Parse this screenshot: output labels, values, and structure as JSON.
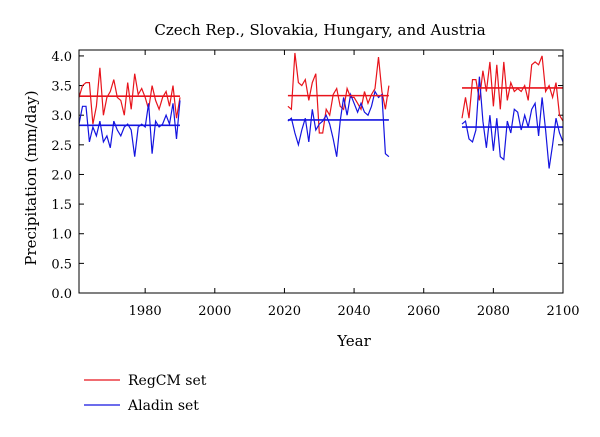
{
  "chart_data": {
    "type": "line",
    "title": "Czech Rep., Slovakia, Hungary, and Austria",
    "xlabel": "Year",
    "ylabel": "Precipitation (mm/day)",
    "xlim": [
      1961,
      2100
    ],
    "ylim": [
      0,
      4.1
    ],
    "xticks": [
      1980,
      2000,
      2020,
      2040,
      2060,
      2080,
      2100
    ],
    "yticks": [
      0.0,
      0.5,
      1.0,
      1.5,
      2.0,
      2.5,
      3.0,
      3.5,
      4.0
    ],
    "xtick_labels": [
      "1980",
      "2000",
      "2020",
      "2040",
      "2060",
      "2080",
      "2100"
    ],
    "ytick_labels": [
      "0.0",
      "0.5",
      "1.0",
      "1.5",
      "2.0",
      "2.5",
      "3.0",
      "3.5",
      "4.0"
    ],
    "grid": false,
    "legend_position": "bottom-left, below plot",
    "series": [
      {
        "name": "RegCM set",
        "color": "#e8141c",
        "x": [
          1961,
          1962,
          1963,
          1964,
          1965,
          1966,
          1967,
          1968,
          1969,
          1970,
          1971,
          1972,
          1973,
          1974,
          1975,
          1976,
          1977,
          1978,
          1979,
          1980,
          1981,
          1982,
          1983,
          1984,
          1985,
          1986,
          1987,
          1988,
          1989,
          1990,
          2021,
          2022,
          2023,
          2024,
          2025,
          2026,
          2027,
          2028,
          2029,
          2030,
          2031,
          2032,
          2033,
          2034,
          2035,
          2036,
          2037,
          2038,
          2039,
          2040,
          2041,
          2042,
          2043,
          2044,
          2045,
          2046,
          2047,
          2048,
          2049,
          2050,
          2071,
          2072,
          2073,
          2074,
          2075,
          2076,
          2077,
          2078,
          2079,
          2080,
          2081,
          2082,
          2083,
          2084,
          2085,
          2086,
          2087,
          2088,
          2089,
          2090,
          2091,
          2092,
          2093,
          2094,
          2095,
          2096,
          2097,
          2098,
          2099,
          2100
        ],
        "y": [
          3.3,
          3.5,
          3.55,
          3.55,
          2.85,
          3.15,
          3.8,
          3.0,
          3.3,
          3.4,
          3.6,
          3.3,
          3.25,
          3.0,
          3.55,
          3.1,
          3.7,
          3.35,
          3.45,
          3.3,
          3.1,
          3.5,
          3.25,
          3.1,
          3.3,
          3.4,
          3.15,
          3.5,
          2.95,
          3.3,
          3.15,
          3.1,
          4.05,
          3.55,
          3.5,
          3.6,
          3.25,
          3.55,
          3.7,
          2.7,
          2.7,
          3.1,
          3.0,
          3.35,
          3.45,
          3.15,
          3.1,
          3.45,
          3.3,
          3.3,
          3.2,
          3.1,
          3.4,
          3.2,
          3.35,
          3.45,
          3.98,
          3.4,
          3.1,
          3.5,
          2.95,
          3.3,
          2.95,
          3.6,
          3.6,
          3.25,
          3.75,
          3.4,
          3.9,
          3.15,
          3.85,
          3.1,
          3.9,
          3.25,
          3.55,
          3.4,
          3.45,
          3.4,
          3.5,
          3.25,
          3.85,
          3.9,
          3.85,
          4.0,
          3.4,
          3.5,
          3.3,
          3.55,
          3.0,
          2.9
        ]
      },
      {
        "name": "Aladin set",
        "color": "#1414e0",
        "x": [
          1961,
          1962,
          1963,
          1964,
          1965,
          1966,
          1967,
          1968,
          1969,
          1970,
          1971,
          1972,
          1973,
          1974,
          1975,
          1976,
          1977,
          1978,
          1979,
          1980,
          1981,
          1982,
          1983,
          1984,
          1985,
          1986,
          1987,
          1988,
          1989,
          1990,
          2021,
          2022,
          2023,
          2024,
          2025,
          2026,
          2027,
          2028,
          2029,
          2030,
          2031,
          2032,
          2033,
          2034,
          2035,
          2036,
          2037,
          2038,
          2039,
          2040,
          2041,
          2042,
          2043,
          2044,
          2045,
          2046,
          2047,
          2048,
          2049,
          2050,
          2071,
          2072,
          2073,
          2074,
          2075,
          2076,
          2077,
          2078,
          2079,
          2080,
          2081,
          2082,
          2083,
          2084,
          2085,
          2086,
          2087,
          2088,
          2089,
          2090,
          2091,
          2092,
          2093,
          2094,
          2095,
          2096,
          2097,
          2098,
          2099,
          2100
        ],
        "y": [
          2.85,
          3.15,
          3.15,
          2.55,
          2.8,
          2.65,
          2.9,
          2.55,
          2.65,
          2.45,
          2.9,
          2.75,
          2.65,
          2.8,
          2.85,
          2.75,
          2.3,
          2.8,
          2.85,
          2.8,
          3.2,
          2.35,
          2.9,
          2.8,
          2.85,
          3.0,
          2.85,
          3.2,
          2.6,
          3.25,
          2.9,
          2.95,
          2.7,
          2.5,
          2.75,
          2.95,
          2.55,
          3.1,
          2.75,
          2.85,
          2.9,
          3.0,
          2.85,
          2.6,
          2.3,
          2.9,
          3.3,
          3.0,
          3.35,
          3.2,
          3.05,
          3.2,
          3.05,
          3.0,
          3.15,
          3.4,
          3.3,
          3.35,
          2.35,
          2.3,
          2.85,
          2.9,
          2.6,
          2.55,
          2.75,
          3.65,
          2.9,
          2.45,
          3.0,
          2.4,
          2.95,
          2.3,
          2.25,
          2.9,
          2.7,
          3.1,
          3.05,
          2.75,
          3.0,
          2.8,
          3.1,
          3.2,
          2.65,
          3.3,
          2.75,
          2.1,
          2.5,
          2.95,
          2.7,
          2.55
        ],
        "means": [
          {
            "x_start": 1961,
            "x_end": 1990,
            "value": 2.83
          },
          {
            "x_start": 2021,
            "x_end": 2050,
            "value": 2.92
          },
          {
            "x_start": 2071,
            "x_end": 2100,
            "value": 2.8
          }
        ]
      }
    ],
    "means_regcm": [
      {
        "x_start": 1961,
        "x_end": 1990,
        "value": 3.32
      },
      {
        "x_start": 2021,
        "x_end": 2050,
        "value": 3.33
      },
      {
        "x_start": 2071,
        "x_end": 2100,
        "value": 3.46
      }
    ]
  },
  "legend": {
    "items": [
      {
        "label": "RegCM set",
        "color": "#e8141c"
      },
      {
        "label": "Aladin set",
        "color": "#1414e0"
      }
    ]
  }
}
